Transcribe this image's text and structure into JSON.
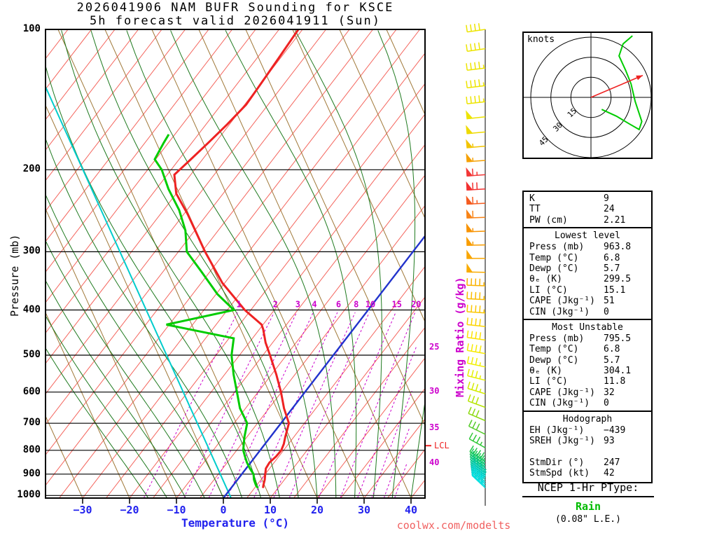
{
  "title": {
    "line1": "2026041906 NAM BUFR Sounding for KSCE",
    "line2": "5h forecast valid 2026041911 (Sun)"
  },
  "watermark": "coolwx.com/modelts",
  "axes": {
    "pressure_label": "Pressure (mb)",
    "temperature_label": "Temperature (°C)",
    "mixing_ratio_label": "Mixing Ratio (g/kg)",
    "pressure_ticks_mb": [
      100,
      200,
      300,
      400,
      500,
      600,
      700,
      800,
      900,
      1000
    ],
    "temperature_ticks_c": [
      -30,
      -20,
      -10,
      0,
      10,
      20,
      30,
      40
    ],
    "pressure_range_mb": [
      100,
      1013
    ],
    "lcl_label": "LCL"
  },
  "chart_data": {
    "type": "skewt-sounding",
    "temperature_profile": {
      "color": "#ee2222",
      "points_p_t": [
        [
          963.8,
          6.8
        ],
        [
          950,
          6.4
        ],
        [
          925,
          5.8
        ],
        [
          900,
          5.0
        ],
        [
          875,
          4.2
        ],
        [
          850,
          4.0
        ],
        [
          825,
          4.4
        ],
        [
          800,
          4.5
        ],
        [
          775,
          4.0
        ],
        [
          750,
          3.2
        ],
        [
          700,
          1.7
        ],
        [
          650,
          -1.8
        ],
        [
          600,
          -5.1
        ],
        [
          550,
          -9.0
        ],
        [
          500,
          -13.5
        ],
        [
          470,
          -16.5
        ],
        [
          440,
          -19.2
        ],
        [
          430,
          -20.3
        ],
        [
          400,
          -26.3
        ],
        [
          350,
          -35.5
        ],
        [
          300,
          -44.3
        ],
        [
          250,
          -54.0
        ],
        [
          225,
          -60.0
        ],
        [
          205,
          -63.5
        ],
        [
          190,
          -62.5
        ],
        [
          175,
          -61.5
        ],
        [
          160,
          -60.5
        ],
        [
          145,
          -59.7
        ],
        [
          130,
          -60.0
        ],
        [
          115,
          -60.4
        ],
        [
          100,
          -60.9
        ]
      ]
    },
    "dewpoint_profile": {
      "color": "#00cc00",
      "points_p_t": [
        [
          963.8,
          5.7
        ],
        [
          950,
          4.8
        ],
        [
          925,
          3.5
        ],
        [
          900,
          2.5
        ],
        [
          875,
          0.8
        ],
        [
          850,
          -0.8
        ],
        [
          825,
          -2.2
        ],
        [
          800,
          -3.6
        ],
        [
          750,
          -5.5
        ],
        [
          700,
          -7.2
        ],
        [
          650,
          -11.2
        ],
        [
          600,
          -14.5
        ],
        [
          550,
          -18.1
        ],
        [
          500,
          -21.7
        ],
        [
          460,
          -24.0
        ],
        [
          430,
          -40.6
        ],
        [
          400,
          -28.6
        ],
        [
          370,
          -34.7
        ],
        [
          330,
          -42.0
        ],
        [
          300,
          -48.2
        ],
        [
          270,
          -52.0
        ],
        [
          244,
          -56.7
        ],
        [
          220,
          -62.4
        ],
        [
          200,
          -67.0
        ],
        [
          190,
          -70.2
        ],
        [
          175,
          -71.0
        ],
        [
          168,
          -71.3
        ]
      ]
    },
    "lcl_pressure_mb": 782,
    "parcel_reference": {
      "color": "#00cccc",
      "points_p_t": [
        [
          1012,
          1.6
        ],
        [
          133,
          -105.3
        ]
      ]
    },
    "isotherms": {
      "color": "#f4645c",
      "step_c": 5,
      "range_c": [
        -115,
        45
      ],
      "zero_highlight_color": "#2233cc"
    },
    "dry_adiabats": {
      "color": "#a07838",
      "surface_temps_c": [
        -40,
        -30,
        -20,
        -10,
        0,
        10,
        20,
        30,
        40,
        50,
        60,
        70,
        80,
        90
      ],
      "screen_slope": 0.453
    },
    "moist_adiabats": {
      "color": "#1f7a1f",
      "start_temps_c": [
        -16,
        -12,
        -8,
        -4,
        0,
        4,
        8,
        12,
        16,
        20,
        24,
        28,
        32,
        36,
        40
      ]
    },
    "mixing_ratio_lines": {
      "color": "#cc00cc",
      "values_gkg": [
        1,
        2,
        3,
        4,
        6,
        8,
        10,
        15,
        20,
        25,
        30,
        35,
        40
      ],
      "inline_label_values": [
        1,
        2,
        3,
        4,
        6,
        8,
        10,
        15,
        20
      ],
      "edge_label_p_mb": {
        "25": 480,
        "30": 597,
        "35": 714,
        "40": 849
      }
    },
    "wind_barbs": [
      [
        100,
        40,
        262,
        "#ede400"
      ],
      [
        110,
        40,
        262,
        "#ede400"
      ],
      [
        121,
        45,
        263,
        "#ede400"
      ],
      [
        132,
        45,
        263,
        "#ede400"
      ],
      [
        143,
        45,
        264,
        "#ede400"
      ],
      [
        154,
        50,
        264,
        "#ede400"
      ],
      [
        166,
        50,
        265,
        "#eeda00"
      ],
      [
        178,
        55,
        265,
        "#f2c400"
      ],
      [
        191,
        55,
        266,
        "#f5a000"
      ],
      [
        205,
        65,
        266,
        "#f23737"
      ],
      [
        220,
        70,
        267,
        "#f23030"
      ],
      [
        236,
        65,
        267,
        "#f55c20"
      ],
      [
        253,
        60,
        268,
        "#f88316"
      ],
      [
        271,
        55,
        268,
        "#f89300"
      ],
      [
        290,
        55,
        269,
        "#f99d00"
      ],
      [
        310,
        50,
        270,
        "#f9a600"
      ],
      [
        332,
        50,
        271,
        "#f9ab00"
      ],
      [
        355,
        45,
        272,
        "#fab200"
      ],
      [
        380,
        45,
        273,
        "#fabc00"
      ],
      [
        406,
        45,
        274,
        "#fbc600"
      ],
      [
        434,
        40,
        276,
        "#fcd400"
      ],
      [
        464,
        40,
        278,
        "#fce200"
      ],
      [
        496,
        40,
        280,
        "#f7ea00"
      ],
      [
        530,
        35,
        282,
        "#f0ef00"
      ],
      [
        566,
        35,
        284,
        "#e5f000"
      ],
      [
        605,
        35,
        287,
        "#d3ec00"
      ],
      [
        647,
        30,
        290,
        "#b5e500"
      ],
      [
        691,
        30,
        293,
        "#8cda10"
      ],
      [
        739,
        30,
        296,
        "#53cb28"
      ],
      [
        790,
        35,
        299,
        "#30c838"
      ],
      [
        845,
        40,
        302,
        "#20c84a"
      ],
      [
        858,
        40,
        303,
        "#18c85a"
      ],
      [
        870,
        40,
        304,
        "#10c86c"
      ],
      [
        882,
        40,
        305,
        "#0ac87e"
      ],
      [
        894,
        45,
        306,
        "#06c890"
      ],
      [
        905,
        45,
        307,
        "#04c8a0"
      ],
      [
        915,
        40,
        308,
        "#03c8b0"
      ],
      [
        925,
        40,
        309,
        "#02cbbc"
      ],
      [
        935,
        40,
        310,
        "#01cfc8"
      ],
      [
        945,
        40,
        311,
        "#00d4d2"
      ],
      [
        955,
        35,
        312,
        "#00dada"
      ],
      [
        963,
        35,
        313,
        "#00e0e0"
      ]
    ],
    "hodograph": {
      "units_label": "knots",
      "rings_kt": [
        15,
        30,
        45
      ],
      "trace_color": "#00cc00",
      "trace_uv_kt": [
        [
          8,
          -9
        ],
        [
          19,
          -14
        ],
        [
          29,
          -20
        ],
        [
          36,
          -24
        ],
        [
          38,
          -18
        ],
        [
          33,
          -3
        ],
        [
          30,
          10
        ],
        [
          26,
          20
        ],
        [
          21,
          31
        ],
        [
          24,
          40
        ],
        [
          31,
          46
        ]
      ],
      "storm_motion": {
        "dir_deg": 247,
        "spd_kt": 42,
        "arrow_color": "#ee2222"
      }
    }
  },
  "indices_panel": {
    "sections": [
      {
        "rows": [
          [
            "K",
            "9"
          ],
          [
            "TT",
            "24"
          ],
          [
            "PW (cm)",
            "2.21"
          ]
        ]
      },
      {
        "header": "Lowest level",
        "rows": [
          [
            "Press (mb)",
            "963.8"
          ],
          [
            "Temp (°C)",
            "6.8"
          ],
          [
            "Dewp (°C)",
            "5.7"
          ],
          [
            "θₑ (K)",
            "299.5"
          ],
          [
            "LI (°C)",
            "15.1"
          ],
          [
            "CAPE (Jkg⁻¹)",
            "51"
          ],
          [
            "CIN (Jkg⁻¹)",
            "0"
          ]
        ]
      },
      {
        "header": "Most Unstable",
        "rows": [
          [
            "Press (mb)",
            "795.5"
          ],
          [
            "Temp (°C)",
            "6.8"
          ],
          [
            "Dewp (°C)",
            "5.7"
          ],
          [
            "θₑ (K)",
            "304.1"
          ],
          [
            "LI (°C)",
            "11.8"
          ],
          [
            "CAPE (Jkg⁻¹)",
            "32"
          ],
          [
            "CIN (Jkg⁻¹)",
            "0"
          ]
        ]
      },
      {
        "header": "Hodograph",
        "rows": [
          [
            "EH (Jkg⁻¹)",
            "−439"
          ],
          [
            "SREH (Jkg⁻¹)",
            "93"
          ],
          [
            "",
            ""
          ],
          [
            "StmDir (°)",
            "247"
          ],
          [
            "StmSpd (kt)",
            "42"
          ]
        ]
      }
    ]
  },
  "ptype_panel": {
    "title": "NCEP 1-Hr PType:",
    "value": "Rain",
    "value_color": "#00bb00",
    "note": "(0.08\" L.E.)"
  }
}
